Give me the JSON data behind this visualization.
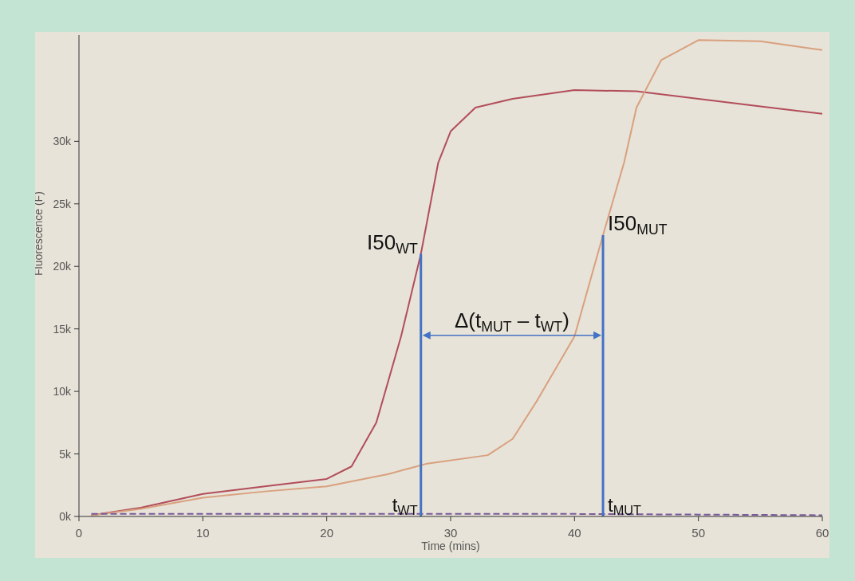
{
  "chart_data": {
    "type": "line",
    "xlabel": "Time (mins)",
    "ylabel": "Fluorescence (F)",
    "xlim": [
      0,
      60
    ],
    "xticks": [
      0,
      10,
      20,
      30,
      40,
      50,
      60
    ],
    "ylim": [
      0,
      38500
    ],
    "yticks": [
      {
        "value": 0,
        "label": "0k"
      },
      {
        "value": 5000,
        "label": "5k"
      },
      {
        "value": 10000,
        "label": "10k"
      },
      {
        "value": 15000,
        "label": "15k"
      },
      {
        "value": 20000,
        "label": "20k"
      },
      {
        "value": 25000,
        "label": "25k"
      },
      {
        "value": 30000,
        "label": "30k"
      }
    ],
    "marker": "none",
    "series": [
      {
        "color": "#b24d5a",
        "x": [
          1,
          5,
          10,
          15,
          20,
          22,
          24,
          26,
          27.6,
          29,
          30,
          32,
          35,
          40,
          45,
          50,
          55,
          60
        ],
        "values": [
          100,
          700,
          1800,
          2400,
          3000,
          4000,
          7500,
          14400,
          21000,
          28300,
          30800,
          32700,
          33400,
          34100,
          34000,
          33400,
          32800,
          32200
        ]
      },
      {
        "color": "#d9a07e",
        "x": [
          1,
          5,
          10,
          15,
          20,
          25,
          28,
          33,
          35,
          37,
          40,
          42.3,
          44,
          45,
          47,
          50,
          55,
          60
        ],
        "values": [
          100,
          600,
          1500,
          2000,
          2400,
          3400,
          4200,
          4900,
          6200,
          9300,
          14400,
          22500,
          28300,
          32700,
          36500,
          38100,
          38000,
          37300
        ]
      },
      {
        "color": "#7a5a9a",
        "line_style": "dashed",
        "x": [
          1,
          10,
          20,
          30,
          40,
          50,
          60
        ],
        "values": [
          200,
          200,
          200,
          200,
          200,
          150,
          100
        ]
      }
    ],
    "ref_lines": [
      {
        "axis": "x",
        "value": 27.6,
        "label": "t$_{WT}$",
        "color": "#4472c4"
      },
      {
        "axis": "x",
        "value": 42.3,
        "label": "t$_{MUT}$",
        "color": "#4472c4"
      }
    ],
    "annotations": [
      {
        "text": "I50$_{WT}$",
        "x": 27.6,
        "y": 21000
      },
      {
        "text": "I50$_{MUT}$",
        "x": 42.3,
        "y": 22500
      },
      "Δ(t$_{MUT}$ – t$_{WT}$)"
    ]
  }
}
